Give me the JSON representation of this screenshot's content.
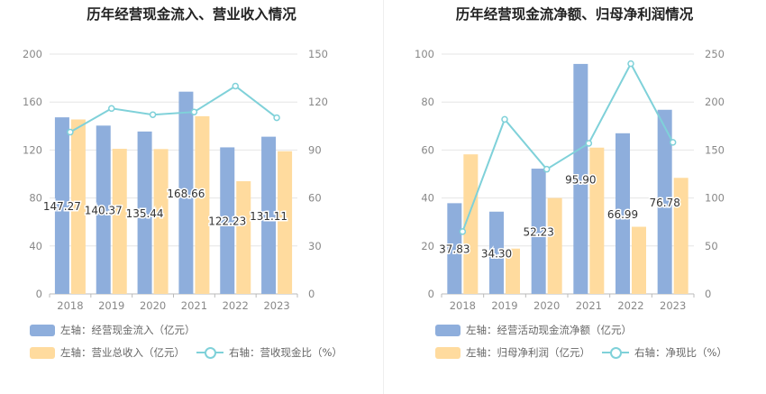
{
  "colors": {
    "inflow": "#8eaedc",
    "revenue": "#ffdb9e",
    "ratio": "#7fd1d9",
    "grid": "#e6e6e6",
    "axis": "#888888"
  },
  "charts": [
    {
      "title": "历年经营现金流入、营业收入情况",
      "legend": {
        "bar1": "左轴：经营现金流入（亿元）",
        "bar2": "左轴：营业总收入（亿元）",
        "line": "右轴：营收现金比（%）"
      }
    },
    {
      "title": "历年经营现金流净额、归母净利润情况",
      "legend": {
        "bar1": "左轴：经营活动现金流净额（亿元）",
        "bar2": "左轴：归母净利润（亿元）",
        "line": "右轴：净现比（%）"
      }
    }
  ],
  "chart_data": [
    {
      "type": "bar",
      "categories": [
        "2018",
        "2019",
        "2020",
        "2021",
        "2022",
        "2023"
      ],
      "series": [
        {
          "name": "左轴：经营现金流入（亿元）",
          "axis": "left",
          "values": [
            147.27,
            140.37,
            135.44,
            168.66,
            122.23,
            131.11
          ],
          "labels": [
            "147.27",
            "140.37",
            "135.44",
            "168.66",
            "122.23",
            "131.11"
          ]
        },
        {
          "name": "左轴：营业总收入（亿元）",
          "axis": "left",
          "values": [
            145.5,
            121.0,
            120.8,
            148.2,
            94.0,
            119.0
          ]
        },
        {
          "name": "右轴：营收现金比（%）",
          "axis": "right",
          "type": "line",
          "values": [
            101.2,
            116.0,
            112.1,
            113.8,
            130.0,
            110.2
          ]
        }
      ],
      "left_ticks": [
        "0",
        "40",
        "80",
        "120",
        "160",
        "200"
      ],
      "right_ticks": [
        "0",
        "30",
        "60",
        "90",
        "120",
        "150"
      ],
      "ylim_left": [
        0,
        200
      ],
      "ylim_right": [
        0,
        150
      ]
    },
    {
      "type": "bar",
      "categories": [
        "2018",
        "2019",
        "2020",
        "2021",
        "2022",
        "2023"
      ],
      "series": [
        {
          "name": "左轴：经营活动现金流净额（亿元）",
          "axis": "left",
          "values": [
            37.83,
            34.3,
            52.23,
            95.9,
            66.99,
            76.78
          ],
          "labels": [
            "37.83",
            "34.30",
            "52.23",
            "95.90",
            "66.99",
            "76.78"
          ]
        },
        {
          "name": "左轴：归母净利润（亿元）",
          "axis": "left",
          "values": [
            58.2,
            18.9,
            40.0,
            61.0,
            28.0,
            48.4
          ]
        },
        {
          "name": "右轴：净现比（%）",
          "axis": "right",
          "type": "line",
          "values": [
            65.0,
            182.0,
            130.0,
            157.0,
            240.0,
            158.0
          ]
        }
      ],
      "left_ticks": [
        "0",
        "20",
        "40",
        "60",
        "80",
        "100"
      ],
      "right_ticks": [
        "0",
        "50",
        "100",
        "150",
        "200",
        "250"
      ],
      "ylim_left": [
        0,
        100
      ],
      "ylim_right": [
        0,
        250
      ]
    }
  ]
}
